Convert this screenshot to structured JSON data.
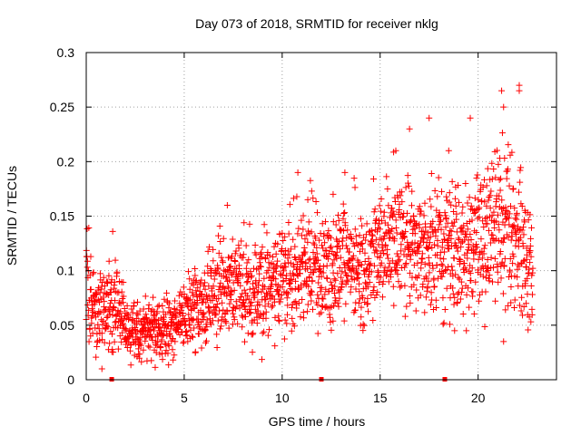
{
  "chart_data": {
    "type": "scatter",
    "title": "Day 073 of 2018, SRMTID for receiver nklg",
    "xlabel": "GPS time / hours",
    "ylabel": "SRMTID / TECUs",
    "xlim": [
      0,
      24
    ],
    "ylim": [
      0,
      0.3
    ],
    "x_ticks": [
      0,
      5,
      10,
      15,
      20
    ],
    "y_ticks": [
      0,
      0.05,
      0.1,
      0.15,
      0.2,
      0.25,
      0.3
    ],
    "x_tick_labels": [
      "0",
      "5",
      "10",
      "15",
      "20"
    ],
    "y_tick_labels": [
      "0",
      "0.05",
      "0.1",
      "0.15",
      "0.2",
      "0.25",
      "0.3"
    ],
    "grid": true,
    "legend": "none",
    "series": [
      {
        "color": "#ff0000",
        "marker": "plus",
        "trend_points": [
          {
            "x": 0.0,
            "y": 0.085
          },
          {
            "x": 0.5,
            "y": 0.065
          },
          {
            "x": 1.0,
            "y": 0.06
          },
          {
            "x": 1.5,
            "y": 0.08
          },
          {
            "x": 2.0,
            "y": 0.045
          },
          {
            "x": 2.5,
            "y": 0.045
          },
          {
            "x": 3.0,
            "y": 0.045
          },
          {
            "x": 3.5,
            "y": 0.048
          },
          {
            "x": 4.0,
            "y": 0.048
          },
          {
            "x": 4.5,
            "y": 0.05
          },
          {
            "x": 5.0,
            "y": 0.058
          },
          {
            "x": 5.5,
            "y": 0.068
          },
          {
            "x": 6.0,
            "y": 0.075
          },
          {
            "x": 6.5,
            "y": 0.08
          },
          {
            "x": 7.0,
            "y": 0.085
          },
          {
            "x": 7.5,
            "y": 0.085
          },
          {
            "x": 8.0,
            "y": 0.085
          },
          {
            "x": 8.5,
            "y": 0.082
          },
          {
            "x": 9.0,
            "y": 0.082
          },
          {
            "x": 9.5,
            "y": 0.085
          },
          {
            "x": 10.0,
            "y": 0.09
          },
          {
            "x": 10.5,
            "y": 0.1
          },
          {
            "x": 11.0,
            "y": 0.11
          },
          {
            "x": 11.5,
            "y": 0.11
          },
          {
            "x": 12.0,
            "y": 0.1
          },
          {
            "x": 12.5,
            "y": 0.1
          },
          {
            "x": 13.0,
            "y": 0.115
          },
          {
            "x": 13.5,
            "y": 0.11
          },
          {
            "x": 14.0,
            "y": 0.11
          },
          {
            "x": 14.5,
            "y": 0.115
          },
          {
            "x": 15.0,
            "y": 0.12
          },
          {
            "x": 15.5,
            "y": 0.13
          },
          {
            "x": 16.0,
            "y": 0.125
          },
          {
            "x": 16.5,
            "y": 0.12
          },
          {
            "x": 17.0,
            "y": 0.115
          },
          {
            "x": 17.5,
            "y": 0.11
          },
          {
            "x": 18.0,
            "y": 0.12
          },
          {
            "x": 18.5,
            "y": 0.12
          },
          {
            "x": 19.0,
            "y": 0.12
          },
          {
            "x": 19.5,
            "y": 0.125
          },
          {
            "x": 20.0,
            "y": 0.12
          },
          {
            "x": 20.5,
            "y": 0.13
          },
          {
            "x": 21.0,
            "y": 0.14
          },
          {
            "x": 21.5,
            "y": 0.14
          },
          {
            "x": 22.0,
            "y": 0.13
          },
          {
            "x": 22.5,
            "y": 0.11
          },
          {
            "x": 22.8,
            "y": 0.1
          }
        ],
        "outliers": [
          {
            "x": 0.8,
            "y": 0.01
          },
          {
            "x": 1.35,
            "y": 0.136
          },
          {
            "x": 7.2,
            "y": 0.16
          },
          {
            "x": 10.8,
            "y": 0.19
          },
          {
            "x": 12.6,
            "y": 0.17
          },
          {
            "x": 13.2,
            "y": 0.19
          },
          {
            "x": 15.8,
            "y": 0.21
          },
          {
            "x": 16.5,
            "y": 0.23
          },
          {
            "x": 17.5,
            "y": 0.24
          },
          {
            "x": 18.5,
            "y": 0.21
          },
          {
            "x": 19.6,
            "y": 0.24
          },
          {
            "x": 21.2,
            "y": 0.265
          },
          {
            "x": 21.3,
            "y": 0.25
          },
          {
            "x": 22.1,
            "y": 0.27
          },
          {
            "x": 22.1,
            "y": 0.265
          },
          {
            "x": 21.3,
            "y": 0.035
          },
          {
            "x": 19.4,
            "y": 0.045
          },
          {
            "x": 18.8,
            "y": 0.045
          }
        ]
      }
    ],
    "flag_markers": [
      {
        "x": 1.3,
        "y": 0
      },
      {
        "x": 12.0,
        "y": 0
      },
      {
        "x": 18.3,
        "y": 0
      }
    ]
  }
}
